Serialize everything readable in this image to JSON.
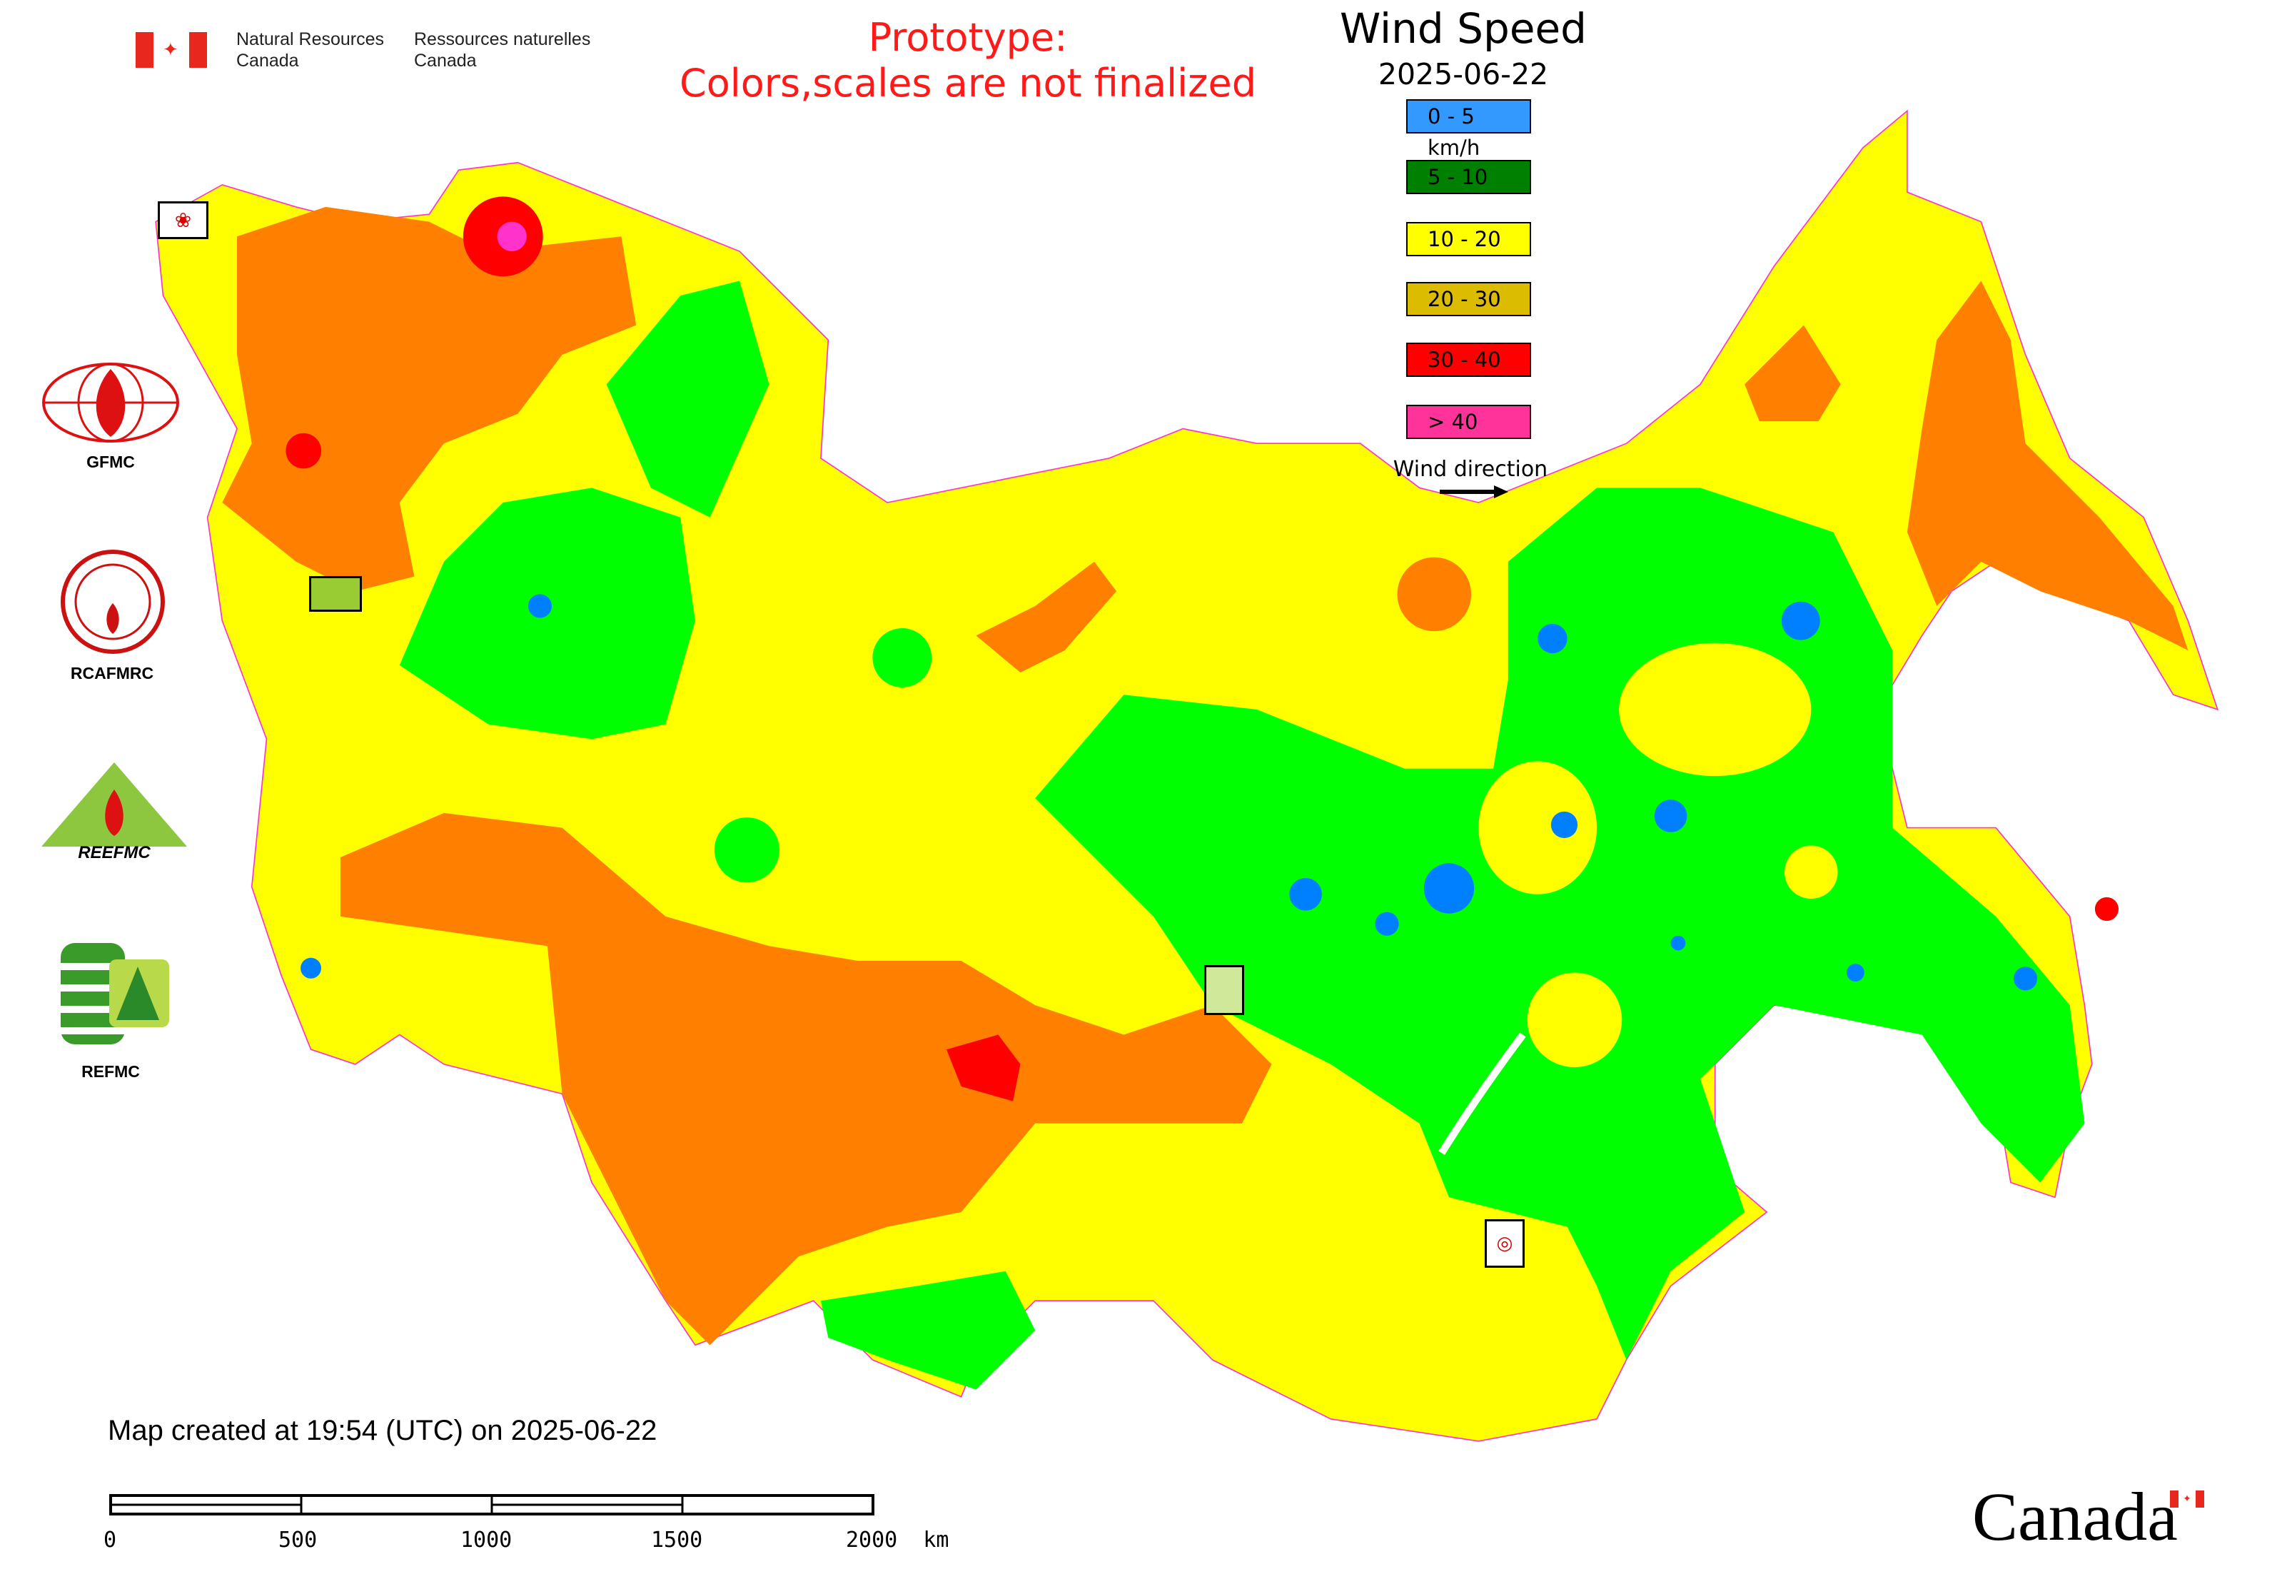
{
  "header": {
    "nrcan_en": [
      "Natural Resources",
      "Canada"
    ],
    "nrcan_fr": [
      "Ressources naturelles",
      "Canada"
    ],
    "prototype_lines": [
      "Prototype:",
      "Colors,scales are not finalized"
    ]
  },
  "legend": {
    "title": "Wind Speed",
    "date": "2025-06-22",
    "items": [
      {
        "label": "0 - 5 km/h",
        "color": "#3399ff"
      },
      {
        "label": "5 - 10",
        "color": "#008000"
      },
      {
        "label": "10 - 20",
        "color": "#ffff00"
      },
      {
        "label": "20 - 30",
        "color": "#dcbc00"
      },
      {
        "label": "30 - 40",
        "color": "#ff0000"
      },
      {
        "label": "> 40",
        "color": "#ff3399"
      }
    ],
    "wind_direction_label": "Wind direction"
  },
  "logos": {
    "gfmc": "GFMC",
    "rcafmrc": "RCAFMRC",
    "reefmc": "REEFMC",
    "refmc": "REFMC"
  },
  "map_colors": {
    "land": "#ffff00",
    "orange": "#ff8000",
    "green": "#00ff00",
    "blue": "#0080ff",
    "red": "#ff0000",
    "magenta": "#ff33cc"
  },
  "footer": {
    "created": "Map created at 19:54 (UTC) on 2025-06-22",
    "scale_labels": [
      "0",
      "500",
      "1000",
      "1500",
      "2000  km"
    ],
    "canada_wordmark": "Canada"
  }
}
